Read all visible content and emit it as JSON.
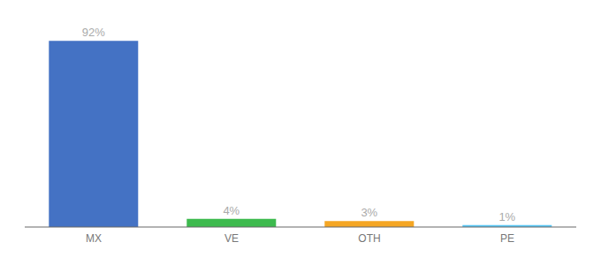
{
  "chart_data": {
    "type": "bar",
    "categories": [
      "MX",
      "VE",
      "OTH",
      "PE"
    ],
    "values": [
      92,
      4,
      3,
      1
    ],
    "value_labels": [
      "92%",
      "4%",
      "3%",
      "1%"
    ],
    "data_labels": true,
    "colors": [
      "#4472c4",
      "#3dba4e",
      "#f5a623",
      "#5bc8f5"
    ],
    "ylim": [
      0,
      100
    ],
    "tick_labels": "x",
    "grid": false
  }
}
